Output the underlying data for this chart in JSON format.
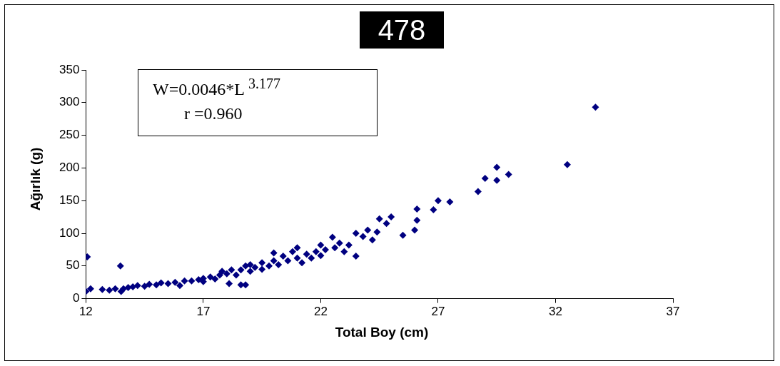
{
  "chart_data": {
    "type": "scatter",
    "title": "478",
    "xlabel": "Total Boy (cm)",
    "ylabel": "Ağırlık (g)",
    "annotations": [
      "W=0.0046*L $^{3.177}$",
      "r =0.960"
    ],
    "xlim": [
      12,
      37
    ],
    "xticks": [
      12,
      17,
      22,
      27,
      32,
      37
    ],
    "ylim": [
      0,
      350
    ],
    "yticks": [
      0,
      50,
      100,
      150,
      200,
      250,
      300,
      350
    ],
    "grid": false,
    "legend": false,
    "marker": "diamond",
    "series": [
      {
        "color": "#000080",
        "x": [
          12.0,
          12.06,
          12.2,
          12.7,
          13.0,
          13.25,
          13.47,
          13.5,
          13.6,
          13.8,
          14.0,
          14.2,
          14.5,
          14.7,
          15.0,
          15.2,
          15.5,
          15.8,
          16.0,
          16.2,
          16.5,
          16.8,
          17.0,
          17.0,
          17.3,
          17.5,
          17.7,
          17.8,
          18.0,
          18.1,
          18.2,
          18.4,
          18.6,
          18.6,
          18.8,
          18.8,
          19.0,
          19.0,
          19.2,
          19.5,
          19.5,
          19.8,
          20.0,
          20.0,
          20.2,
          20.4,
          20.6,
          20.8,
          21.0,
          21.0,
          21.2,
          21.4,
          21.6,
          21.8,
          22.0,
          22.0,
          22.2,
          22.5,
          22.6,
          22.8,
          23.0,
          23.2,
          23.5,
          23.5,
          23.8,
          24.0,
          24.2,
          24.4,
          24.5,
          24.8,
          25.0,
          25.5,
          26.0,
          26.1,
          26.1,
          26.8,
          27.0,
          27.5,
          28.7,
          29.0,
          29.5,
          29.5,
          30.0,
          32.5,
          33.7
        ],
        "values": [
          11,
          64,
          15,
          14,
          13,
          15,
          50,
          11,
          15,
          17,
          18,
          20,
          19,
          22,
          21,
          24,
          23,
          25,
          20,
          27,
          27,
          29,
          31,
          26,
          33,
          30,
          36,
          42,
          38,
          23,
          44,
          36,
          21,
          44,
          21,
          50,
          42,
          52,
          48,
          55,
          45,
          50,
          58,
          70,
          52,
          65,
          58,
          72,
          62,
          78,
          55,
          68,
          62,
          72,
          82,
          66,
          75,
          94,
          78,
          85,
          72,
          82,
          65,
          100,
          95,
          105,
          90,
          102,
          122,
          115,
          125,
          97,
          105,
          120,
          137,
          136,
          150,
          148,
          164,
          184,
          181,
          201,
          190,
          205,
          293
        ]
      }
    ]
  }
}
